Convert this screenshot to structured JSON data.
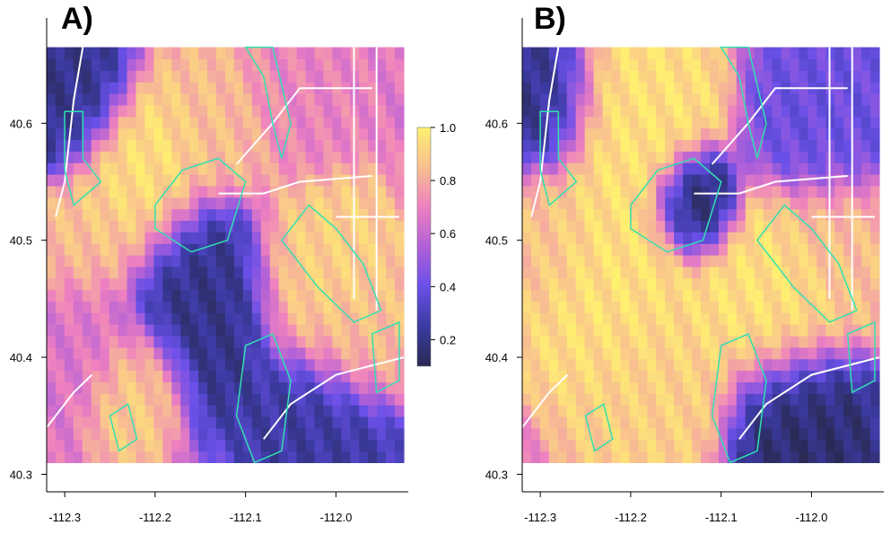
{
  "chart_data": [
    {
      "type": "heatmap",
      "panel_label": "A)",
      "x_ticks": [
        -112.3,
        -112.2,
        -112.1,
        -112.0
      ],
      "x_tick_labels": [
        "-112.3",
        "-112.2",
        "-112.1",
        "-112.0"
      ],
      "y_ticks": [
        40.3,
        40.4,
        40.5,
        40.6
      ],
      "y_tick_labels": [
        "40.3",
        "40.4",
        "40.5",
        "40.6"
      ],
      "xlim": [
        -112.32,
        -111.92
      ],
      "ylim": [
        40.285,
        40.69
      ],
      "data_extent": {
        "x": [
          -112.32,
          -111.925
        ],
        "y": [
          40.31,
          40.665
        ]
      },
      "colorscale": {
        "min": 0.1,
        "max": 1.0
      },
      "hotspots": [
        {
          "lon": -112.22,
          "lat": 40.55,
          "v": 0.95,
          "r": 0.035
        },
        {
          "lon": -112.27,
          "lat": 40.5,
          "v": 0.85,
          "r": 0.03
        },
        {
          "lon": -112.28,
          "lat": 40.42,
          "v": 0.65,
          "r": 0.03
        },
        {
          "lon": -112.22,
          "lat": 40.38,
          "v": 0.9,
          "r": 0.025
        },
        {
          "lon": -112.12,
          "lat": 40.6,
          "v": 0.85,
          "r": 0.03
        },
        {
          "lon": -112.02,
          "lat": 40.47,
          "v": 0.9,
          "r": 0.035
        },
        {
          "lon": -111.98,
          "lat": 40.42,
          "v": 0.85,
          "r": 0.03
        },
        {
          "lon": -112.05,
          "lat": 40.62,
          "v": 0.7,
          "r": 0.03
        },
        {
          "lon": -112.15,
          "lat": 40.45,
          "v": 0.2,
          "r": 0.04
        },
        {
          "lon": -112.02,
          "lat": 40.34,
          "v": 0.25,
          "r": 0.035
        },
        {
          "lon": -112.3,
          "lat": 40.62,
          "v": 0.2,
          "r": 0.03
        }
      ]
    },
    {
      "type": "heatmap",
      "panel_label": "B)",
      "x_ticks": [
        -112.3,
        -112.2,
        -112.1,
        -112.0
      ],
      "x_tick_labels": [
        "-112.3",
        "-112.2",
        "-112.1",
        "-112.0"
      ],
      "y_ticks": [
        40.3,
        40.4,
        40.5,
        40.6
      ],
      "y_tick_labels": [
        "40.3",
        "40.4",
        "40.5",
        "40.6"
      ],
      "xlim": [
        -112.32,
        -111.92
      ],
      "ylim": [
        40.285,
        40.69
      ],
      "data_extent": {
        "x": [
          -112.32,
          -111.925
        ],
        "y": [
          40.31,
          40.665
        ]
      },
      "colorscale": {
        "min": 0.1,
        "max": 1.0
      },
      "hotspots": [
        {
          "lon": -112.2,
          "lat": 40.6,
          "v": 0.95,
          "r": 0.04
        },
        {
          "lon": -112.22,
          "lat": 40.47,
          "v": 0.95,
          "r": 0.045
        },
        {
          "lon": -112.17,
          "lat": 40.37,
          "v": 0.9,
          "r": 0.04
        },
        {
          "lon": -112.05,
          "lat": 40.45,
          "v": 0.95,
          "r": 0.04
        },
        {
          "lon": -111.97,
          "lat": 40.5,
          "v": 0.85,
          "r": 0.03
        },
        {
          "lon": -112.3,
          "lat": 40.5,
          "v": 0.85,
          "r": 0.03
        },
        {
          "lon": -112.13,
          "lat": 40.53,
          "v": 0.1,
          "r": 0.022
        },
        {
          "lon": -112.02,
          "lat": 40.34,
          "v": 0.15,
          "r": 0.035
        },
        {
          "lon": -112.3,
          "lat": 40.62,
          "v": 0.2,
          "r": 0.03
        },
        {
          "lon": -111.98,
          "lat": 40.6,
          "v": 0.4,
          "r": 0.035
        }
      ]
    }
  ],
  "colorbar": {
    "ticks": [
      0.2,
      0.4,
      0.6,
      0.8,
      1.0
    ],
    "tick_labels": [
      "0.2",
      "0.4",
      "0.6",
      "0.8",
      "1.0"
    ],
    "range": [
      0.1,
      1.0
    ],
    "colors": [
      "#2a2a55",
      "#3a3aa0",
      "#6a50e8",
      "#b060d8",
      "#ee80c0",
      "#f8c090",
      "#fff070"
    ]
  },
  "overlay_colors": {
    "roads": "#ffffff",
    "boundaries": "#33e0b0"
  }
}
